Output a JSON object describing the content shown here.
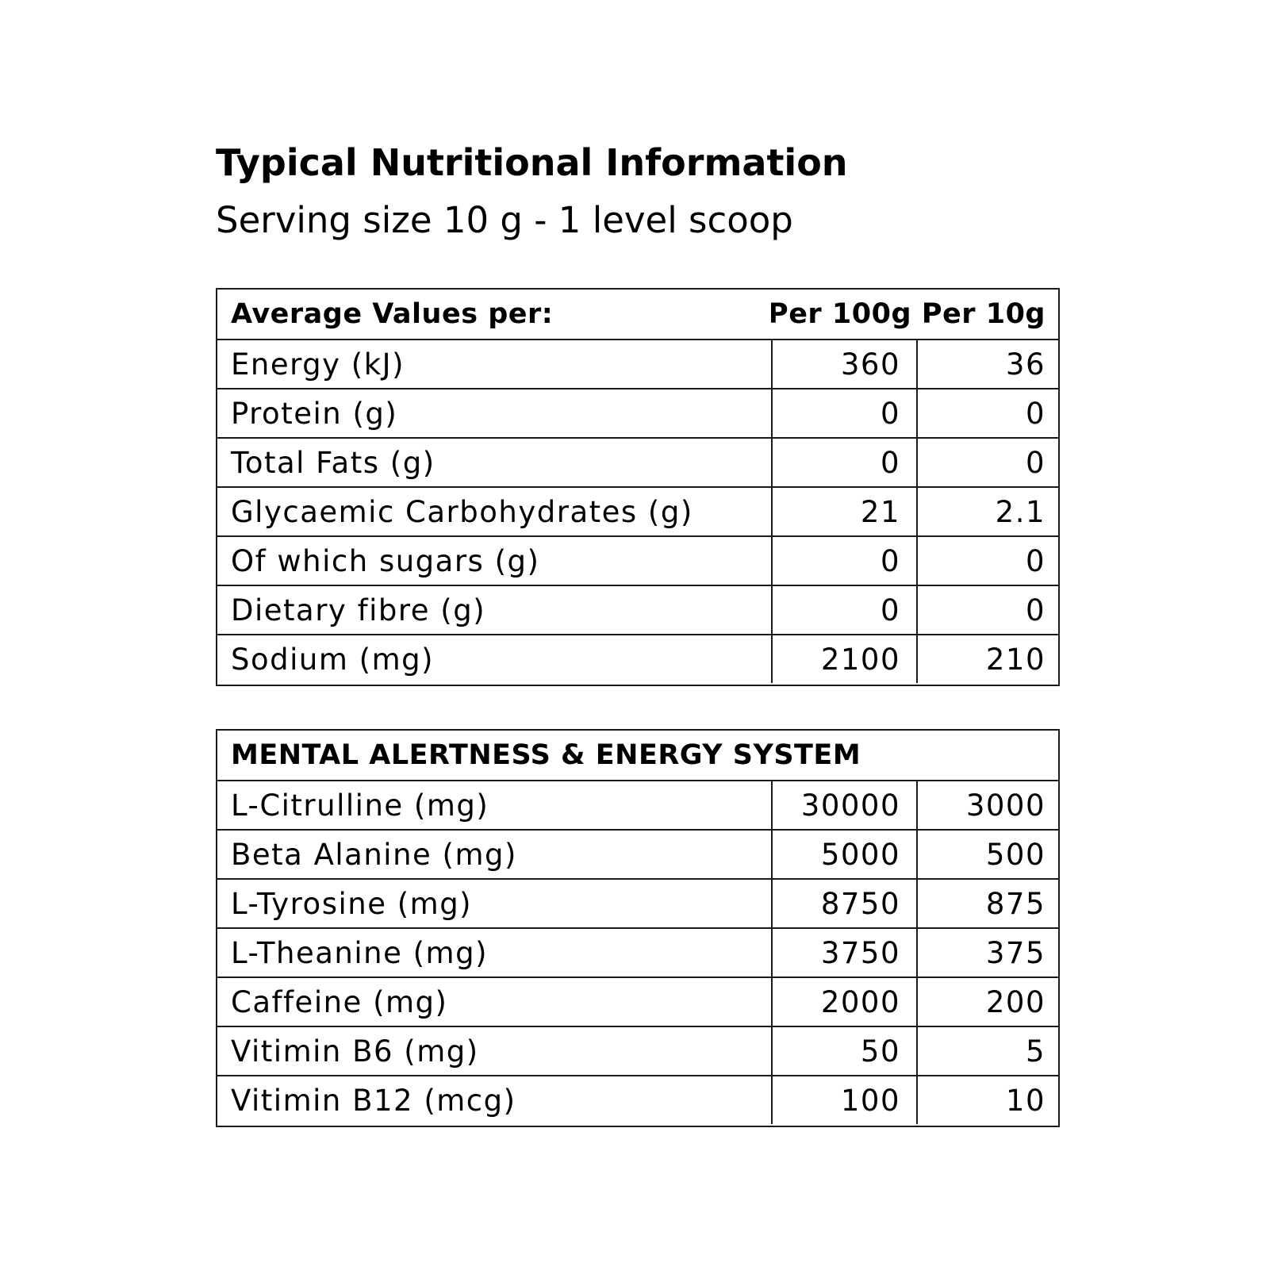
{
  "title": "Typical Nutritional Information",
  "subtitle": "Serving size 10 g - 1 level scoop",
  "nutrition_table": {
    "header": {
      "label": "Average Values per:",
      "col1": "Per 100g",
      "col2": "Per 10g"
    },
    "rows": [
      {
        "name": "Energy (kJ)",
        "per100": "360",
        "per10": "36"
      },
      {
        "name": "Protein (g)",
        "per100": "0",
        "per10": "0"
      },
      {
        "name": "Total Fats (g)",
        "per100": "0",
        "per10": "0"
      },
      {
        "name": "Glycaemic Carbohydrates (g)",
        "per100": "21",
        "per10": "2.1"
      },
      {
        "name": "Of which sugars (g)",
        "per100": "0",
        "per10": "0"
      },
      {
        "name": "Dietary fibre (g)",
        "per100": "0",
        "per10": "0"
      },
      {
        "name": "Sodium (mg)",
        "per100": "2100",
        "per10": "210"
      }
    ]
  },
  "energy_table": {
    "header": "MENTAL ALERTNESS & ENERGY SYSTEM",
    "rows": [
      {
        "name": "L-Citrulline (mg)",
        "per100": "30000",
        "per10": "3000"
      },
      {
        "name": "Beta Alanine (mg)",
        "per100": "5000",
        "per10": "500"
      },
      {
        "name": "L-Tyrosine (mg)",
        "per100": "8750",
        "per10": "875"
      },
      {
        "name": "L-Theanine (mg)",
        "per100": "3750",
        "per10": "375"
      },
      {
        "name": "Caffeine (mg)",
        "per100": "2000",
        "per10": "200"
      },
      {
        "name": "Vitimin B6 (mg)",
        "per100": "50",
        "per10": "5"
      },
      {
        "name": "Vitimin B12 (mcg)",
        "per100": "100",
        "per10": "10"
      }
    ]
  }
}
